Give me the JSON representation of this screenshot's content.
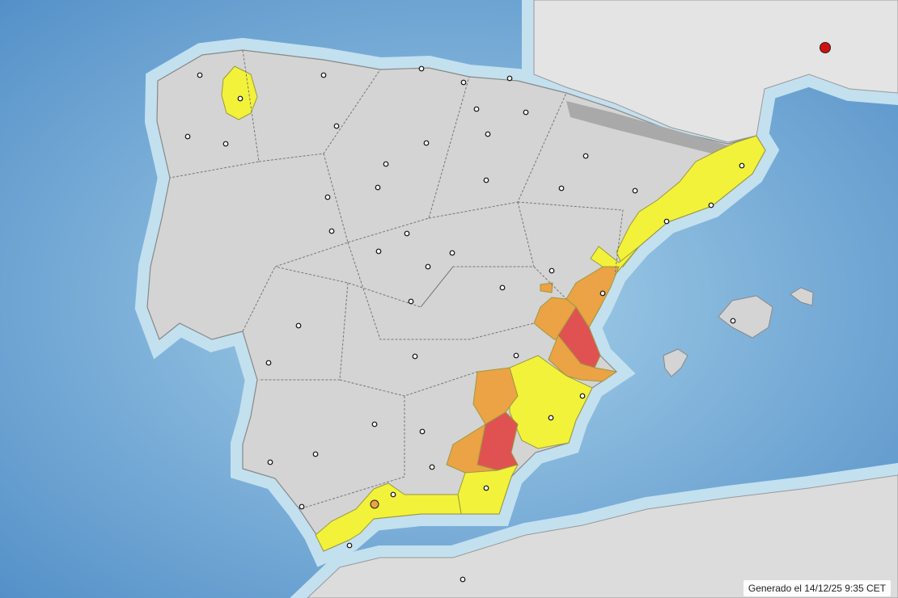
{
  "map": {
    "region": "Iberian Peninsula",
    "generated_label": "Generado el 14/12/25 9:35 CET",
    "colors": {
      "sea_deep": "#4f8cc6",
      "sea_shallow": "#b9dcee",
      "land": "#d4d4d4",
      "border": "#777777",
      "warning_yellow": "#f2f23a",
      "warning_orange": "#eba345",
      "warning_red": "#e05252"
    },
    "legend_levels": [
      "yellow",
      "orange",
      "red"
    ]
  }
}
